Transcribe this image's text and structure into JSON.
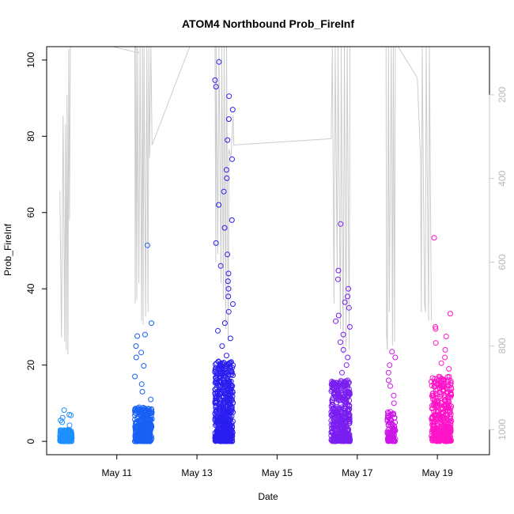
{
  "chart_data": {
    "type": "scatter",
    "title": "ATOM4 Northbound Prob_FireInf",
    "xlabel": "Date",
    "ylabel": "Prob_FireInf",
    "x_ticks": [
      "May 11",
      "May 13",
      "May 15",
      "May 17",
      "May 19"
    ],
    "x_tick_days": [
      11,
      13,
      15,
      17,
      19
    ],
    "xlim_days": [
      9.25,
      20.3
    ],
    "y_ticks": [
      0,
      20,
      40,
      60,
      80,
      100
    ],
    "ylim": [
      -3.5,
      103.5
    ],
    "y2_ticks": [
      200,
      400,
      600,
      800,
      1000
    ],
    "y2lim": [
      1060,
      85
    ],
    "y2_color": "#c8c8c8",
    "grid": false,
    "legend": "none",
    "clusters": [
      {
        "day_start": 9.58,
        "day_end": 9.88,
        "color": "#1e90ff",
        "n": 200,
        "base_max": 3.0,
        "outliers": [
          4.2,
          5.0,
          5.5,
          6.2,
          6.8,
          7.0,
          8.2
        ]
      },
      {
        "day_start": 11.45,
        "day_end": 11.88,
        "color": "#1861f5",
        "n": 320,
        "base_max": 9.0,
        "outliers": [
          11,
          13,
          15,
          17,
          19.8,
          22,
          23.3,
          25,
          27.6,
          28,
          31,
          51.4
        ]
      },
      {
        "day_start": 13.45,
        "day_end": 13.9,
        "color": "#2a1ef0",
        "n": 520,
        "base_max": 21.0,
        "outliers": [
          22.5,
          25,
          27,
          29,
          31,
          34,
          36,
          38,
          40,
          42,
          44,
          46,
          49,
          52,
          56,
          58,
          62,
          65.5,
          69,
          71.2,
          74,
          79,
          84.5,
          87,
          90.5,
          93,
          94.7,
          99.5
        ]
      },
      {
        "day_start": 16.35,
        "day_end": 16.82,
        "color": "#7a1ef0",
        "n": 380,
        "base_max": 16.0,
        "outliers": [
          18,
          20,
          22,
          24,
          26,
          28,
          30,
          31.5,
          33,
          35,
          36.5,
          38,
          40,
          42.5,
          44.8,
          57
        ]
      },
      {
        "day_start": 17.75,
        "day_end": 17.95,
        "color": "#cc14e8",
        "n": 90,
        "base_max": 8.0,
        "outliers": [
          10,
          12,
          14.5,
          16,
          18,
          20,
          22,
          23.5
        ]
      },
      {
        "day_start": 18.85,
        "day_end": 19.35,
        "color": "#ff14c8",
        "n": 360,
        "base_max": 17.0,
        "outliers": [
          19,
          20.5,
          22,
          24,
          25.8,
          27.5,
          29.5,
          30,
          33.5,
          53.4
        ]
      }
    ],
    "depth_series": {
      "color": "#cccccc",
      "axis": "right",
      "values": [
        [
          9.58,
          430
        ],
        [
          9.62,
          780
        ],
        [
          9.66,
          250
        ],
        [
          9.7,
          790
        ],
        [
          9.72,
          270
        ],
        [
          9.74,
          810
        ],
        [
          9.76,
          200
        ],
        [
          9.78,
          820
        ],
        [
          9.8,
          90
        ],
        [
          9.82,
          500
        ],
        [
          9.84,
          85
        ],
        [
          10.9,
          85
        ],
        [
          11.55,
          100
        ],
        [
          11.45,
          85
        ],
        [
          11.46,
          700
        ],
        [
          11.48,
          85
        ],
        [
          11.5,
          690
        ],
        [
          11.52,
          85
        ],
        [
          11.55,
          650
        ],
        [
          11.58,
          85
        ],
        [
          11.62,
          740
        ],
        [
          11.64,
          85
        ],
        [
          11.66,
          750
        ],
        [
          11.68,
          85
        ],
        [
          11.72,
          730
        ],
        [
          11.75,
          85
        ],
        [
          11.78,
          720
        ],
        [
          11.8,
          85
        ],
        [
          11.82,
          350
        ],
        [
          11.85,
          85
        ],
        [
          11.88,
          320
        ],
        [
          12.82,
          85
        ],
        [
          13.45,
          85
        ],
        [
          13.47,
          600
        ],
        [
          13.48,
          85
        ],
        [
          13.52,
          580
        ],
        [
          13.55,
          85
        ],
        [
          13.6,
          650
        ],
        [
          13.62,
          85
        ],
        [
          13.66,
          690
        ],
        [
          13.68,
          85
        ],
        [
          13.72,
          760
        ],
        [
          13.74,
          85
        ],
        [
          13.78,
          790
        ],
        [
          13.8,
          330
        ],
        [
          13.85,
          350
        ],
        [
          13.9,
          250
        ],
        [
          13.92,
          320
        ],
        [
          16.35,
          305
        ],
        [
          16.38,
          85
        ],
        [
          16.42,
          700
        ],
        [
          16.45,
          85
        ],
        [
          16.5,
          620
        ],
        [
          16.52,
          85
        ],
        [
          16.58,
          760
        ],
        [
          16.6,
          85
        ],
        [
          16.65,
          820
        ],
        [
          16.68,
          85
        ],
        [
          16.72,
          800
        ],
        [
          16.75,
          85
        ],
        [
          16.8,
          810
        ],
        [
          16.82,
          85
        ],
        [
          17.72,
          85
        ],
        [
          17.73,
          770
        ],
        [
          17.75,
          810
        ],
        [
          17.78,
          85
        ],
        [
          17.8,
          720
        ],
        [
          17.85,
          85
        ],
        [
          17.88,
          800
        ],
        [
          17.9,
          85
        ],
        [
          17.93,
          790
        ],
        [
          17.95,
          85
        ],
        [
          18.02,
          85
        ],
        [
          18.5,
          160
        ],
        [
          18.58,
          350
        ],
        [
          18.6,
          720
        ],
        [
          18.62,
          85
        ],
        [
          18.68,
          700
        ],
        [
          18.7,
          720
        ],
        [
          18.72,
          85
        ],
        [
          18.78,
          740
        ],
        [
          18.8,
          85
        ],
        [
          18.85,
          740
        ]
      ]
    }
  }
}
